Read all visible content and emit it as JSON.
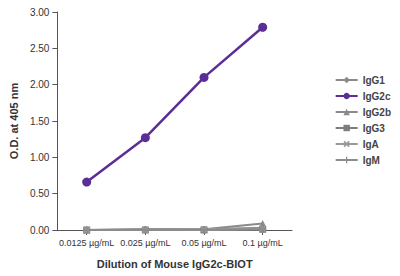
{
  "chart_data": {
    "type": "line",
    "x_label": "Dilution of Mouse IgG2c-BIOT",
    "y_label": "O.D. at 405 nm",
    "categories": [
      "0.0125 µg/mL",
      "0.025 µg/mL",
      "0.05 µg/mL",
      "0.1 µg/mL"
    ],
    "series": [
      {
        "name": "IgG1",
        "color": "#8a8a8a",
        "marker": "diamond",
        "values": [
          0,
          0.01,
          0.01,
          0.03
        ]
      },
      {
        "name": "IgG2c",
        "color": "#5b2d96",
        "marker": "circle",
        "values": [
          0.66,
          1.27,
          2.1,
          2.79
        ]
      },
      {
        "name": "IgG2b",
        "color": "#8a8a8a",
        "marker": "triangle",
        "values": [
          0,
          0.01,
          0.01,
          0.09
        ]
      },
      {
        "name": "IgG3",
        "color": "#7d7d7d",
        "marker": "square",
        "values": [
          0,
          0,
          0,
          0.01
        ]
      },
      {
        "name": "IgA",
        "color": "#999999",
        "marker": "x",
        "values": [
          0,
          0,
          0.01,
          0.02
        ]
      },
      {
        "name": "IgM",
        "color": "#8c8c8c",
        "marker": "plus",
        "values": [
          0,
          0,
          0,
          0.01
        ]
      }
    ],
    "ylim": [
      0,
      3
    ],
    "yticks": [
      {
        "value": 0,
        "label": "0.00"
      },
      {
        "value": 0.5,
        "label": "0.50"
      },
      {
        "value": 1,
        "label": "1.00"
      },
      {
        "value": 1.5,
        "label": "1.50"
      },
      {
        "value": 2,
        "label": "2.00"
      },
      {
        "value": 2.5,
        "label": "2.50"
      },
      {
        "value": 3,
        "label": "3.00"
      }
    ],
    "grid": false,
    "legend": "right"
  }
}
